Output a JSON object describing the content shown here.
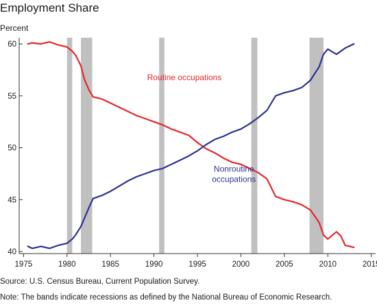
{
  "title": "Employment Share",
  "unit_label": "Percent",
  "source": "Source: U.S. Census Bureau, Current Population Survey.",
  "note": "Note: The bands indicate recessions as defined by the National Bureau of Economic Research.",
  "chart_data": {
    "type": "line",
    "title": "Employment Share",
    "ylabel": "Percent",
    "xlim": [
      1974.5,
      2015.5
    ],
    "ylim": [
      39.8,
      60.6
    ],
    "x_ticks": [
      1975,
      1980,
      1985,
      1990,
      1995,
      2000,
      2005,
      2010,
      2015
    ],
    "y_ticks": [
      40,
      45,
      50,
      55,
      60
    ],
    "grid": false,
    "recessions": [
      [
        1980.0,
        1980.6
      ],
      [
        1981.6,
        1982.9
      ],
      [
        1990.6,
        1991.2
      ],
      [
        2001.2,
        2001.9
      ],
      [
        2007.9,
        2009.5
      ]
    ],
    "recession_color": "#c0c0c0",
    "series": [
      {
        "name": "Routine occupations",
        "color": "#e8252a",
        "x": [
          1975.5,
          1976,
          1977,
          1978,
          1979,
          1980,
          1980.6,
          1981,
          1981.6,
          1982,
          1982.5,
          1983,
          1984,
          1985,
          1986,
          1987,
          1988,
          1989,
          1990,
          1991,
          1992,
          1993,
          1994,
          1995,
          1996,
          1997,
          1998,
          1999,
          2000,
          2001,
          2002,
          2003,
          2004,
          2005,
          2006,
          2007,
          2008,
          2009,
          2009.5,
          2010,
          2011,
          2011.5,
          2012,
          2013
        ],
        "values": [
          60.0,
          60.1,
          60.0,
          60.2,
          59.9,
          59.7,
          59.3,
          58.9,
          57.9,
          56.6,
          55.6,
          54.9,
          54.7,
          54.3,
          53.9,
          53.5,
          53.1,
          52.8,
          52.5,
          52.2,
          51.8,
          51.5,
          51.2,
          50.5,
          49.9,
          49.5,
          49.0,
          48.6,
          48.4,
          48.0,
          47.6,
          47.0,
          45.3,
          45.0,
          44.8,
          44.5,
          44.0,
          42.8,
          41.6,
          41.2,
          41.9,
          41.5,
          40.6,
          40.4
        ]
      },
      {
        "name": "Nonroutine occupations",
        "color": "#2e3192",
        "x": [
          1975.5,
          1976,
          1977,
          1978,
          1979,
          1980,
          1980.6,
          1981,
          1981.6,
          1982,
          1982.5,
          1983,
          1984,
          1985,
          1986,
          1987,
          1988,
          1989,
          1990,
          1991,
          1992,
          1993,
          1994,
          1995,
          1996,
          1997,
          1998,
          1999,
          2000,
          2001,
          2002,
          2003,
          2004,
          2005,
          2006,
          2007,
          2008,
          2009,
          2009.5,
          2010,
          2011,
          2011.5,
          2012,
          2013
        ],
        "values": [
          40.5,
          40.3,
          40.5,
          40.3,
          40.6,
          40.8,
          41.2,
          41.6,
          42.4,
          43.2,
          44.2,
          45.1,
          45.4,
          45.8,
          46.3,
          46.8,
          47.2,
          47.5,
          47.8,
          48.0,
          48.4,
          48.8,
          49.2,
          49.7,
          50.3,
          50.8,
          51.1,
          51.5,
          51.8,
          52.3,
          52.9,
          53.6,
          55.0,
          55.3,
          55.5,
          55.8,
          56.5,
          57.8,
          59.0,
          59.5,
          59.0,
          59.3,
          59.6,
          60.0
        ]
      }
    ],
    "annotations": [
      {
        "text": "Routine occupations",
        "series": "Routine occupations"
      },
      {
        "text": "Nonroutine",
        "series": "Nonroutine occupations"
      },
      {
        "text": "occupations",
        "series": "Nonroutine occupations"
      }
    ]
  }
}
